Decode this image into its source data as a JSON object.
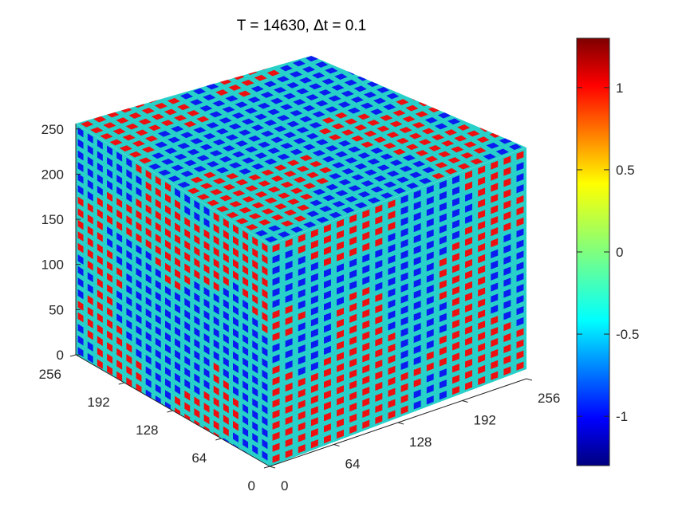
{
  "chart_data": {
    "type": "heatmap",
    "title_prefix": "T = 14630,  ",
    "title_delta": "∆",
    "title_suffix": "t = 0.1",
    "z_axis": {
      "range": [
        0,
        256
      ],
      "ticks": [
        0,
        50,
        100,
        150,
        200,
        250
      ],
      "tick_labels": [
        "0",
        "50",
        "100",
        "150",
        "200",
        "250"
      ]
    },
    "x_axis": {
      "range": [
        0,
        256
      ],
      "ticks": [
        0,
        64,
        128,
        192,
        256
      ],
      "tick_labels": [
        "0",
        "64",
        "128",
        "192",
        "256"
      ]
    },
    "y_axis": {
      "range": [
        0,
        256
      ],
      "ticks": [
        0,
        64,
        128,
        192,
        256
      ],
      "tick_labels": [
        "0",
        "64",
        "128",
        "192",
        "256"
      ]
    },
    "colorbar": {
      "range": [
        -1.3,
        1.3
      ],
      "ticks": [
        -1,
        -0.5,
        0,
        0.5,
        1
      ],
      "tick_labels": [
        "-1",
        "-0.5",
        "0",
        "0.5",
        "1"
      ],
      "colormap": "jet"
    },
    "field": {
      "min": -1,
      "max": 1,
      "phase_colors": [
        "#0a1cf0",
        "#ee1010"
      ],
      "interface_color": "#27d0c8"
    },
    "faces": [
      "top",
      "left",
      "right"
    ],
    "grid": false
  }
}
